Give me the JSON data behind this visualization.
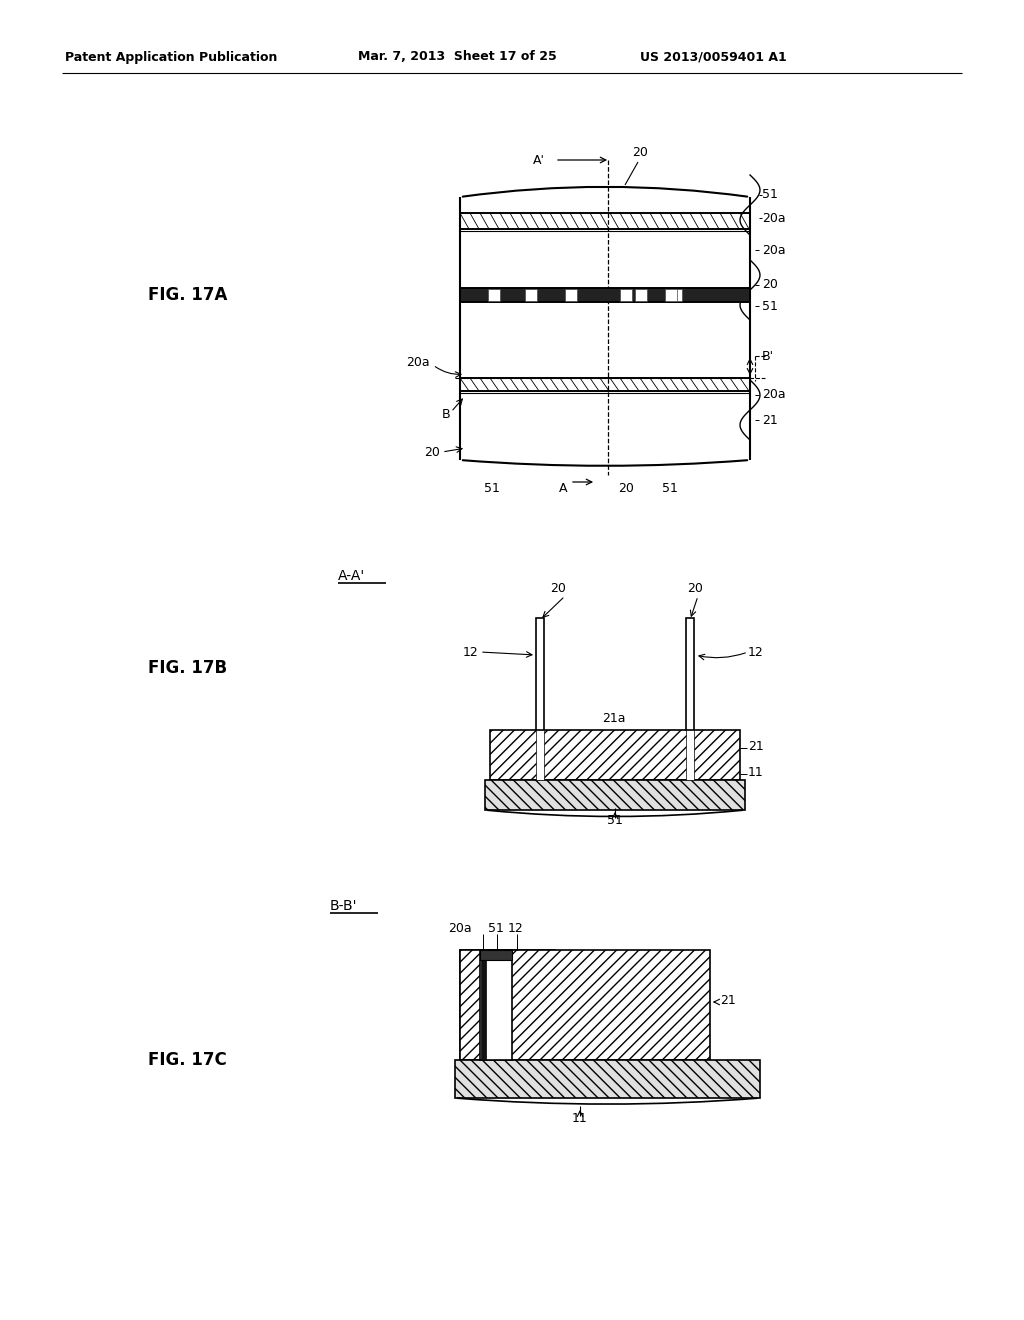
{
  "bg_color": "#ffffff",
  "header_left": "Patent Application Publication",
  "header_mid": "Mar. 7, 2013  Sheet 17 of 25",
  "header_right": "US 2013/0059401 A1",
  "fig17a_label": "FIG. 17A",
  "fig17b_label": "FIG. 17B",
  "fig17c_label": "FIG. 17C"
}
